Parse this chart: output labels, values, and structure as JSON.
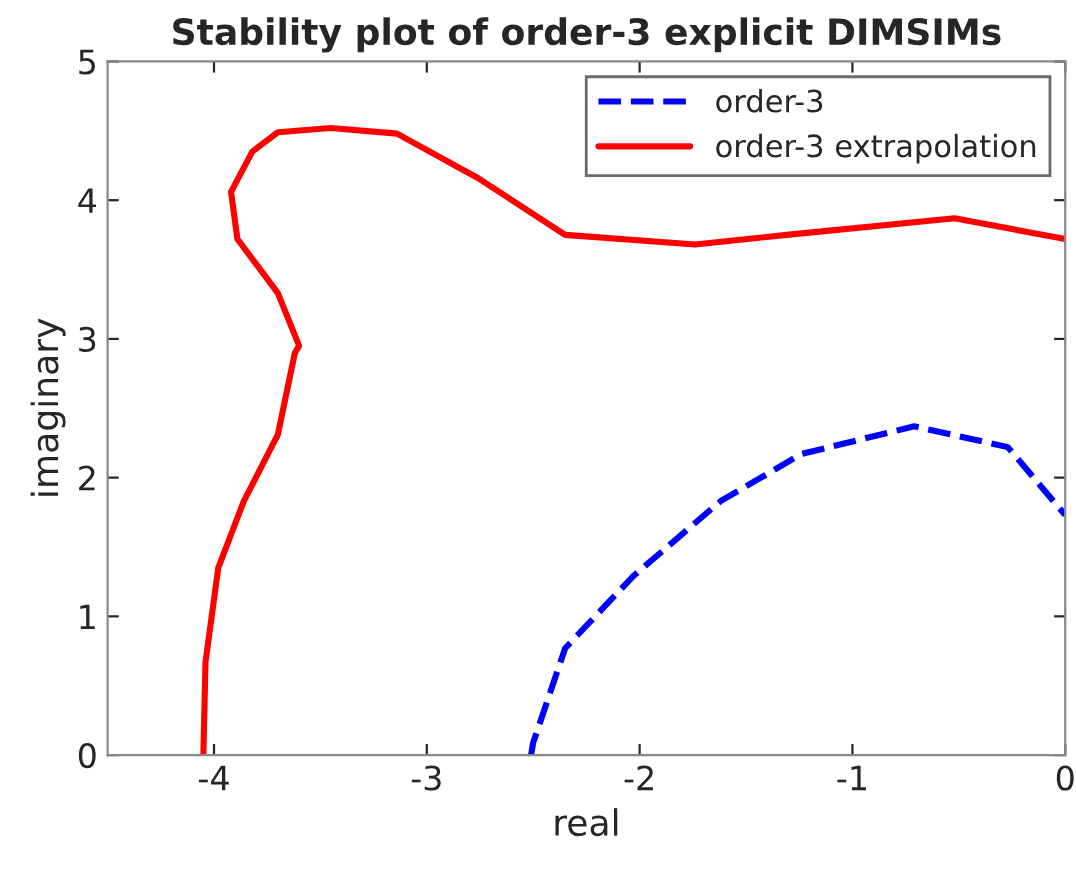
{
  "chart_data": {
    "type": "line",
    "title": "Stability plot of order-3 explicit DIMSIMs",
    "xlabel": "real",
    "ylabel": "imaginary",
    "xlim": [
      -4.5,
      0
    ],
    "ylim": [
      0,
      5
    ],
    "xticks": [
      -4,
      -3,
      -2,
      -1,
      0
    ],
    "yticks": [
      0,
      1,
      2,
      3,
      4,
      5
    ],
    "grid": false,
    "legend": "top right",
    "series": [
      {
        "name": "order-3",
        "color": "#0000ff",
        "line_style": "dashed",
        "x": [
          -2.51,
          -2.5,
          -2.35,
          -2.03,
          -1.62,
          -1.24,
          -0.71,
          -0.27,
          0
        ],
        "values": [
          0,
          0.09,
          0.77,
          1.29,
          1.83,
          2.17,
          2.37,
          2.22,
          1.73
        ]
      },
      {
        "name": "order-3 extrapolation",
        "color": "#ff0000",
        "line_style": "solid",
        "x": [
          -4.05,
          -4.04,
          -3.98,
          -3.86,
          -3.7,
          -3.62,
          -3.6,
          -3.7,
          -3.89,
          -3.92,
          -3.82,
          -3.7,
          -3.45,
          -3.14,
          -2.76,
          -2.35,
          -1.74,
          -1.31,
          -0.52,
          0
        ],
        "values": [
          0,
          0.67,
          1.35,
          1.83,
          2.31,
          2.9,
          2.95,
          3.33,
          3.72,
          4.06,
          4.35,
          4.49,
          4.52,
          4.48,
          4.16,
          3.75,
          3.68,
          3.75,
          3.87,
          3.72
        ]
      }
    ]
  }
}
